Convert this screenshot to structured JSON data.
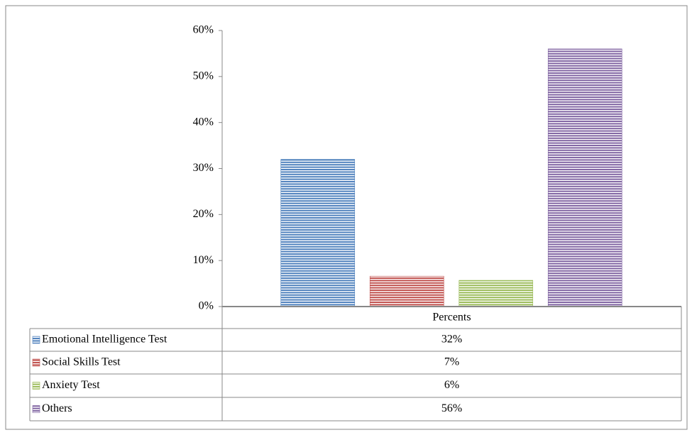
{
  "chart_data": {
    "type": "bar",
    "categories": [
      "Emotional Intelligence Test",
      "Social Skills Test",
      "Anxiety Test",
      "Others"
    ],
    "colors": [
      "#4f81bd",
      "#c0504d",
      "#9bbb59",
      "#8064a2"
    ],
    "series": [
      {
        "name": "Percents",
        "values": [
          32,
          6.6,
          5.7,
          56
        ],
        "value_labels": [
          "32%",
          "7%",
          "6%",
          "56%"
        ]
      }
    ],
    "ylim": [
      0,
      60
    ],
    "yticks": [
      {
        "value": 0,
        "label": "0%"
      },
      {
        "value": 10,
        "label": "10%"
      },
      {
        "value": 20,
        "label": "20%"
      },
      {
        "value": 30,
        "label": "30%"
      },
      {
        "value": 40,
        "label": "40%"
      },
      {
        "value": 50,
        "label": "50%"
      },
      {
        "value": 60,
        "label": "60%"
      }
    ],
    "pattern": "horizontal-stripes"
  }
}
